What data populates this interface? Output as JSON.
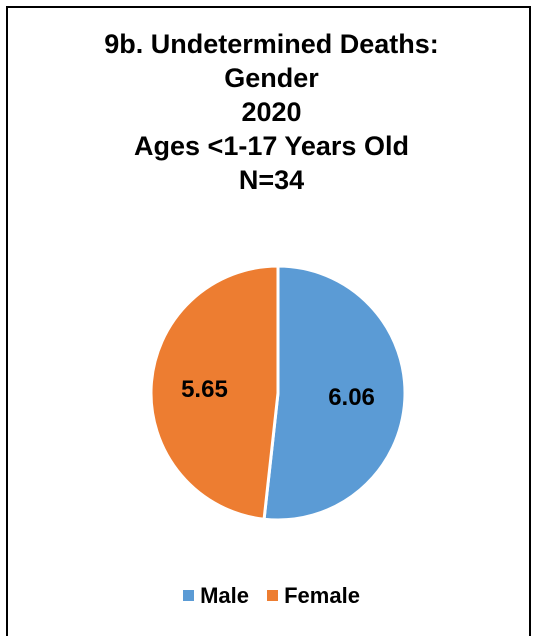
{
  "chart_data": {
    "type": "pie",
    "title_lines": [
      "9b. Undetermined Deaths:",
      "Gender",
      "2020",
      "Ages <1-17 Years Old",
      "N=34"
    ],
    "categories": [
      "Male",
      "Female"
    ],
    "values": [
      6.06,
      5.65
    ],
    "data_labels": [
      "6.06",
      "5.65"
    ],
    "colors": [
      "#5B9BD5",
      "#ED7D31"
    ],
    "legend_position": "bottom",
    "start_angle": "12 o'clock, clockwise"
  }
}
